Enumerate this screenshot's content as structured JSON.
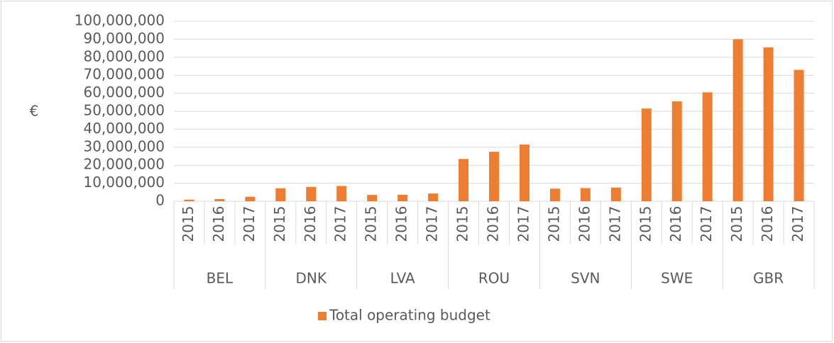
{
  "chart_data": {
    "type": "bar",
    "y_label": "€",
    "groups": [
      "BEL",
      "DNK",
      "LVA",
      "ROU",
      "SVN",
      "SWE",
      "GBR"
    ],
    "categories": [
      "2015",
      "2016",
      "2017",
      "2015",
      "2016",
      "2017",
      "2015",
      "2016",
      "2017",
      "2015",
      "2016",
      "2017",
      "2015",
      "2016",
      "2017",
      "2015",
      "2016",
      "2017",
      "2015",
      "2016",
      "2017"
    ],
    "series": [
      {
        "name": "Total operating budget",
        "color": "#ed7d31",
        "values": [
          900000,
          1200000,
          2500000,
          7200000,
          8000000,
          8500000,
          3500000,
          3600000,
          4300000,
          23500000,
          27500000,
          31500000,
          7000000,
          7300000,
          7600000,
          51500000,
          55500000,
          60500000,
          90000000,
          85500000,
          73000000
        ]
      }
    ],
    "ylim": [
      0,
      100000000
    ],
    "yticks": [
      0,
      {
        "value": 10000000,
        "label": "10,000,000"
      },
      {
        "value": 20000000,
        "label": "20,000,000"
      },
      {
        "value": 30000000,
        "label": "30,000,000"
      },
      {
        "value": 40000000,
        "label": "40,000,000"
      },
      {
        "value": 50000000,
        "label": "50,000,000"
      },
      {
        "value": 60000000,
        "label": "60,000,000"
      },
      {
        "value": 70000000,
        "label": "70,000,000"
      },
      {
        "value": 80000000,
        "label": "80,000,000"
      },
      {
        "value": 90000000,
        "label": "90,000,000"
      },
      {
        "value": 100000000,
        "label": "100,000,000"
      }
    ],
    "grid": true,
    "legend": "bottom"
  }
}
